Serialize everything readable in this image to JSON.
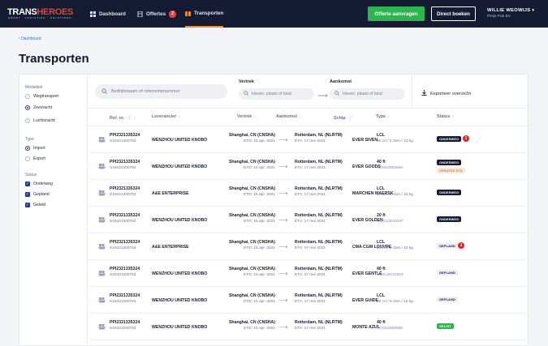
{
  "brand": {
    "name_part1": "TRANS",
    "name_part2": "HEROES",
    "tagline": "SMART · LOGISTICS · SOLUTIONS"
  },
  "nav": {
    "dashboard": "Dashboard",
    "offertes": "Offertes",
    "offertes_count": "2",
    "transporten": "Transporten"
  },
  "actions": {
    "quote": "Offerte aanvragen",
    "book": "Direct boeken"
  },
  "user": {
    "name": "WILLIE WEOWIJS",
    "org": "Pleijs Pub BV"
  },
  "breadcrumb": "Dashboard",
  "page_title": "Transporten",
  "sidebar": {
    "modaliteit_title": "Modaliteit",
    "modaliteit": [
      "Wegtransport",
      "Zeevracht",
      "Luchtvracht"
    ],
    "type_title": "Type",
    "type": [
      "Import",
      "Export"
    ],
    "status_title": "Status",
    "status": [
      "Onderweg",
      "Gepland",
      "Geleid"
    ]
  },
  "filters": {
    "search_placeholder": "Bedrijfsnaam of referentienummer",
    "vertrek_label": "Vertrek",
    "aankomst_label": "Aankomst",
    "place_placeholder": "Haven, plaats of land",
    "export": "Exporteer overzicht"
  },
  "columns": {
    "ref": "Ref. nr.",
    "leverancier": "Leverancier",
    "vertrek": "Vertrek",
    "aankomst": "Aankomst",
    "schip": "Schip",
    "type": "Type",
    "status": "Status"
  },
  "rows": [
    {
      "ref": "PPI2321335324",
      "ref2": "S19421300754",
      "leverancier": "WENZHOU UNITED KNOBO",
      "vertrek": "Shanghai, CN (CNSHA)",
      "etd": "ETD: 15 apr. 2021",
      "aankomst": "Rotterdam, NL (NLRTM)",
      "eta": "ETA: 17 mei 2021",
      "schip": "EVER SIVEN",
      "type": "LCL",
      "type2": "20 crt / 5 cbm / 10 kg",
      "status": "ONDERWEG",
      "alert": "1"
    },
    {
      "ref": "PPI2321335324",
      "ref2": "S19421300754",
      "leverancier": "WENZHOU UNITED KNOBO",
      "vertrek": "Shanghai, CN (CNSHA)",
      "etd": "ETD: 15 apr. 2021",
      "aankomst": "Rotterdam, NL (NLRTM)",
      "eta": "ETA: 17 mei 2021",
      "schip": "EVER GOODS",
      "type": "40 ft",
      "type2": "TCNU2830555",
      "status": "ONDERWEG",
      "status2": "UPDATED ETA"
    },
    {
      "ref": "PPI2321335324",
      "ref2": "S19421300754",
      "leverancier": "A&E ENTERPRISE",
      "vertrek": "Shanghai, CN (CNSHA)",
      "etd": "ETD: 15 apr. 2021",
      "aankomst": "Rotterdam, NL (NLRTM)",
      "eta": "ETA: 17 mei 2021",
      "schip": "MARCHEN MAERSK",
      "type": "LCL",
      "type2": "20 crt / 5 cbm / 10 kg",
      "status": "ONDERWEG"
    },
    {
      "ref": "PPI2321335324",
      "ref2": "S19421300754",
      "leverancier": "WENZHOU UNITED KNOBO",
      "vertrek": "Shanghai, CN (CNSHA)",
      "etd": "ETD: 15 apr. 2021",
      "aankomst": "Rotterdam, NL (NLRTM)",
      "eta": "ETA: 17 mei 2021",
      "schip": "EVER GOLDEN",
      "type": "20 ft",
      "type2": "HMCU3010047",
      "status": "ONDERWEG"
    },
    {
      "ref": "PPI2321335324",
      "ref2": "S19421300754",
      "leverancier": "A&E ENTERPRISE",
      "vertrek": "Shanghai, CN (CNSHA)",
      "etd": "ETD: 15 apr. 2021",
      "aankomst": "Rotterdam, NL (NLRTM)",
      "eta": "ETA: 17 mei 2021",
      "schip": "CMA CGM LOUVRE",
      "type": "LCL",
      "type2": "20 crt / 5 cbm / 10 kg",
      "status": "GEPLAND",
      "alert": "1"
    },
    {
      "ref": "PPI2321335324",
      "ref2": "S19421300754",
      "leverancier": "WENZHOU UNITED KNOBO",
      "vertrek": "Shanghai, CN (CNSHA)",
      "etd": "ETD: 15 apr. 2021",
      "aankomst": "Rotterdam, NL (NLRTM)",
      "eta": "ETA: 17 mei 2021",
      "schip": "EVER GENTLE",
      "type": "40 ft",
      "type2": "MSKU2041823",
      "status": "GEPLAND"
    },
    {
      "ref": "PPI2321335324",
      "ref2": "S19421300754",
      "leverancier": "WENZHOU UNITED KNOBO",
      "vertrek": "Shanghai, CN (CNSHA)",
      "etd": "ETD: 15 apr. 2021",
      "aankomst": "Rotterdam, NL (NLRTM)",
      "eta": "ETA: 17 mei 2021",
      "schip": "EVER GUIDE",
      "type": "LCL",
      "type2": "20 crt / 5 cbm / 10 kg",
      "status": "GEPLAND"
    },
    {
      "ref": "PPI2321335324",
      "ref2": "S19421300754",
      "leverancier": "WENZHOU UNITED KNOBO",
      "vertrek": "Shanghai, CN (CNSHA)",
      "etd": "ETD: 15 apr. 2021",
      "aankomst": "Rotterdam, NL (NLRTM)",
      "eta": "ETA: 17 mei 2021",
      "schip": "MONTE AZUL",
      "type": "40 ft",
      "type2": "TCNU2830555",
      "status": "GELIST"
    }
  ],
  "colors": {
    "nav_bg": "#141b33",
    "accent_green": "#2eb351",
    "accent_orange": "#e98b3a",
    "alert_red": "#d9252a"
  }
}
